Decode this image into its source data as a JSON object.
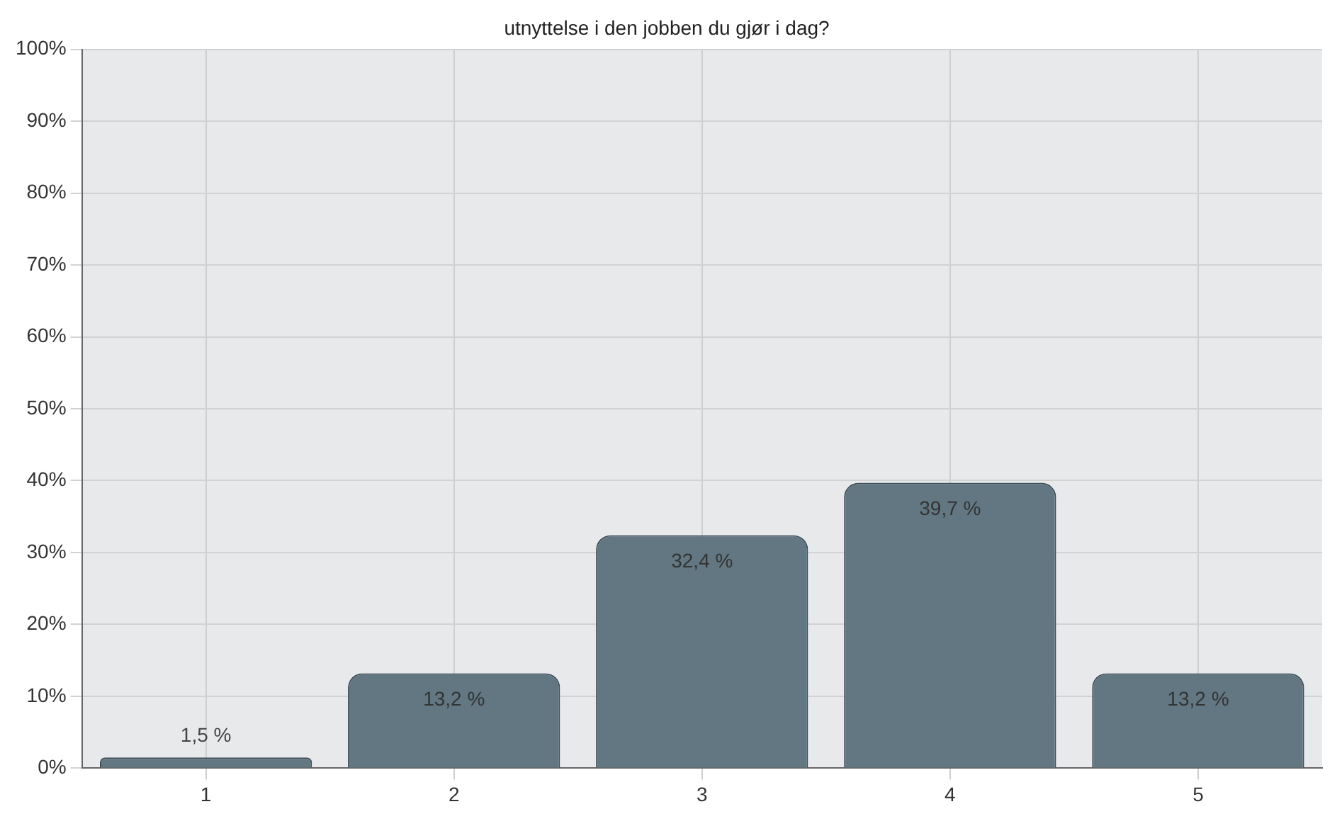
{
  "chart_data": {
    "type": "bar",
    "title": "utnyttelse i den jobben du gjør i dag?",
    "categories": [
      "1",
      "2",
      "3",
      "4",
      "5"
    ],
    "values": [
      1.5,
      13.2,
      32.4,
      39.7,
      13.2
    ],
    "value_labels": [
      "1,5 %",
      "13,2 %",
      "32,4 %",
      "39,7 %",
      "13,2 %"
    ],
    "color": "#627782",
    "ylim": [
      0,
      100
    ],
    "yticks": [
      {
        "value": 0,
        "label": "0%"
      },
      {
        "value": 10,
        "label": "10%"
      },
      {
        "value": 20,
        "label": "20%"
      },
      {
        "value": 30,
        "label": "30%"
      },
      {
        "value": 40,
        "label": "40%"
      },
      {
        "value": 50,
        "label": "50%"
      },
      {
        "value": 60,
        "label": "60%"
      },
      {
        "value": 70,
        "label": "70%"
      },
      {
        "value": 80,
        "label": "80%"
      },
      {
        "value": 90,
        "label": "90%"
      },
      {
        "value": 100,
        "label": "100%"
      }
    ],
    "grid": true,
    "legend": false
  }
}
